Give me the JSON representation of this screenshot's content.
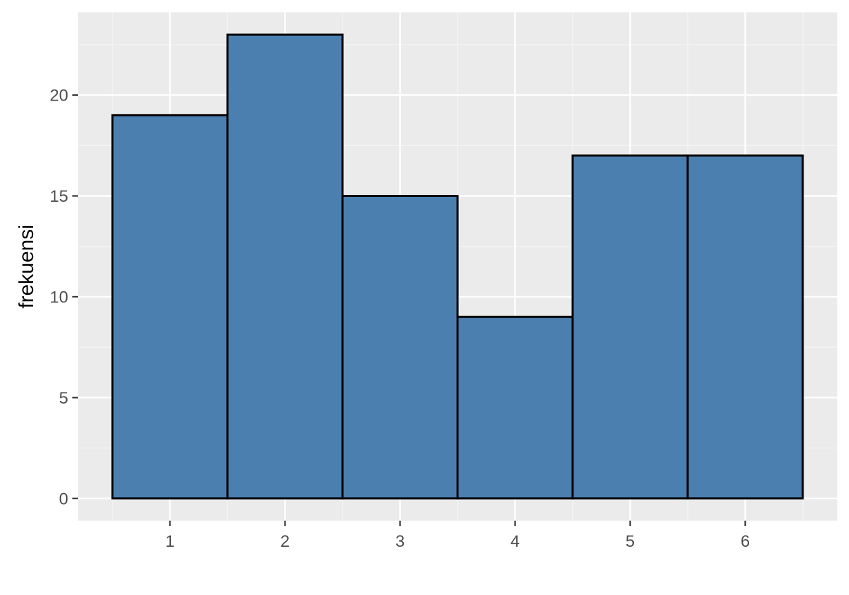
{
  "chart_data": {
    "type": "bar",
    "title": "",
    "xlabel": "",
    "ylabel": "frekuensi",
    "categories": [
      "1",
      "2",
      "3",
      "4",
      "5",
      "6"
    ],
    "values": [
      19,
      23,
      15,
      9,
      17,
      17
    ],
    "ylim": [
      -1.1,
      24.1
    ],
    "xlim": [
      0.2,
      6.8
    ],
    "yticks": [
      0,
      5,
      10,
      15,
      20
    ],
    "ytick_labels": [
      "0",
      "5",
      "10",
      "15",
      "20"
    ],
    "xticks": [
      1,
      2,
      3,
      4,
      5,
      6
    ],
    "xtick_labels": [
      "1",
      "2",
      "3",
      "4",
      "5",
      "6"
    ],
    "bar_width": 1,
    "grid": true,
    "legend": "none",
    "colors": {
      "bar_fill": "#4a7fb0",
      "bar_stroke": "#000000",
      "panel_background": "#ebebeb",
      "grid_major": "#ffffff",
      "grid_minor": "#f5f5f5",
      "tick_mark": "#333333",
      "tick_text": "#4d4d4d"
    }
  }
}
